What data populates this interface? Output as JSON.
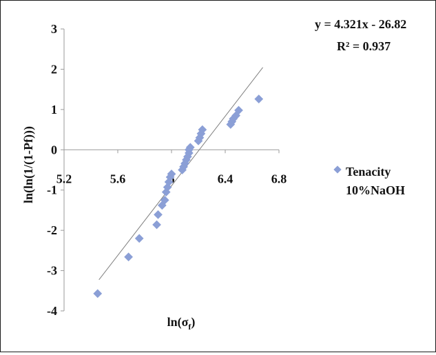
{
  "chart_data": {
    "type": "scatter",
    "title": "",
    "xlabel": "ln(σ",
    "xlabel_sub": "f",
    "xlabel_close": ")",
    "ylabel": "ln(ln(1/(1-Pf)))",
    "xlim": [
      5.2,
      6.8
    ],
    "ylim": [
      -4,
      3
    ],
    "x_ticks": [
      "5.2",
      "5.6",
      "6",
      "6.4",
      "6.8"
    ],
    "y_ticks": [
      "3",
      "2",
      "1",
      "0",
      "-1",
      "-2",
      "-3",
      "-4"
    ],
    "grid": false,
    "legend_position": "right",
    "equation": "y = 4.321x - 26.82",
    "r_squared": "R² = 0.937",
    "trendline": {
      "slope": 4.321,
      "intercept": -26.82,
      "x_range": [
        5.46,
        6.68
      ]
    },
    "series": [
      {
        "name_lines": [
          "Tenacity",
          "10%NaOH"
        ],
        "color": "#8b9fd6",
        "points": [
          [
            5.45,
            -3.57
          ],
          [
            5.68,
            -2.66
          ],
          [
            5.76,
            -2.2
          ],
          [
            5.89,
            -1.86
          ],
          [
            5.9,
            -1.61
          ],
          [
            5.93,
            -1.38
          ],
          [
            5.95,
            -1.25
          ],
          [
            5.96,
            -1.05
          ],
          [
            5.97,
            -0.93
          ],
          [
            5.98,
            -0.8
          ],
          [
            5.99,
            -0.68
          ],
          [
            6.0,
            -0.6
          ],
          [
            6.08,
            -0.5
          ],
          [
            6.09,
            -0.42
          ],
          [
            6.1,
            -0.34
          ],
          [
            6.11,
            -0.25
          ],
          [
            6.12,
            -0.17
          ],
          [
            6.13,
            -0.08
          ],
          [
            6.13,
            0.0
          ],
          [
            6.14,
            0.06
          ],
          [
            6.2,
            0.22
          ],
          [
            6.21,
            0.3
          ],
          [
            6.22,
            0.4
          ],
          [
            6.23,
            0.5
          ],
          [
            6.44,
            0.63
          ],
          [
            6.45,
            0.7
          ],
          [
            6.46,
            0.77
          ],
          [
            6.48,
            0.85
          ],
          [
            6.5,
            0.98
          ],
          [
            6.65,
            1.26
          ]
        ]
      }
    ]
  }
}
